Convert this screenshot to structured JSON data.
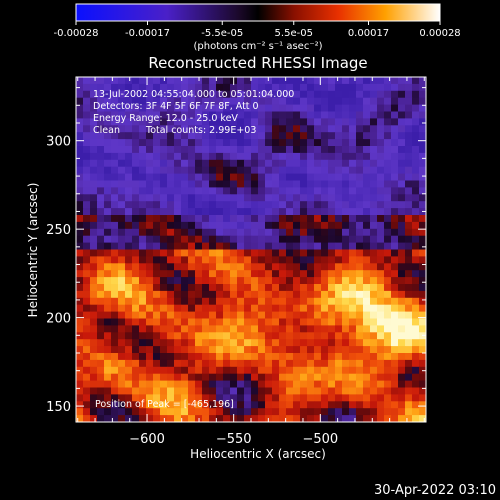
{
  "colors": {
    "background": "#000000",
    "text": "#ffffff",
    "colormap": "rhessi-purple-red-yellow-white"
  },
  "colorbar": {
    "range": [
      -0.00028,
      0.00028
    ],
    "tick_labels": [
      "-0.00028",
      "-0.00017",
      "-5.5e-05",
      "5.5e-05",
      "0.00017",
      "0.00028"
    ],
    "unit_label": "(photons cm⁻² s⁻¹ asec⁻²)"
  },
  "chart_data": {
    "type": "heatmap",
    "title": "Reconstructed RHESSI Image",
    "xlabel": "Heliocentric X (arcsec)",
    "ylabel": "Heliocentric Y (arcsec)",
    "xlim": [
      -641,
      -439
    ],
    "ylim": [
      141,
      336
    ],
    "x_ticks": [
      -600,
      -550,
      -500
    ],
    "y_ticks": [
      150,
      200,
      250,
      300
    ],
    "annotations": {
      "time_range": "13-Jul-2002 04:55:04.000 to 05:01:04.000",
      "detectors": "Detectors: 3F 4F 5F 6F 7F 8F, Att 0",
      "energy": "Energy Range: 12.0 - 25.0 keV",
      "method": "Clean",
      "total_counts": "Total counts: 2.99E+03",
      "peak": "Position of Peak = [-465,196]"
    },
    "peak_position": [
      -465,
      196
    ],
    "grid": false,
    "legend": "colorbar-top"
  },
  "footer": {
    "date": "30-Apr-2022 03:10"
  }
}
